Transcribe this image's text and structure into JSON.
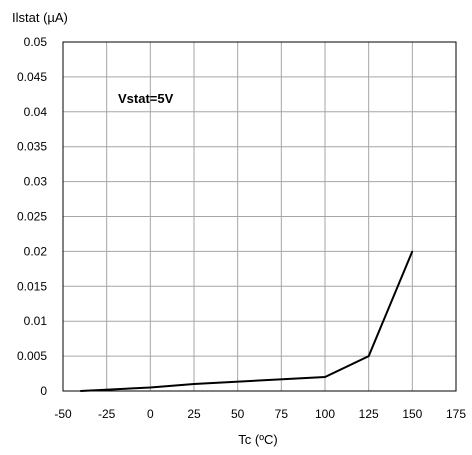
{
  "chart_data": {
    "type": "line",
    "title": "",
    "ylabel": "Ilstat (µA)",
    "xlabel": "Tc (ºC)",
    "annotation": "Vstat=5V",
    "xlim": [
      -50,
      175
    ],
    "ylim": [
      0,
      0.05
    ],
    "x_ticks": [
      -50,
      -25,
      0,
      25,
      50,
      75,
      100,
      125,
      150,
      175
    ],
    "y_ticks": [
      0,
      0.005,
      0.01,
      0.015,
      0.02,
      0.025,
      0.03,
      0.035,
      0.04,
      0.045,
      0.05
    ],
    "x_tick_labels": [
      "-50",
      "-25",
      "0",
      "25",
      "50",
      "75",
      "100",
      "125",
      "150",
      "175"
    ],
    "y_tick_labels": [
      "0",
      "0.005",
      "0.01",
      "0.015",
      "0.02",
      "0.025",
      "0.03",
      "0.035",
      "0.04",
      "0.045",
      "0.05"
    ],
    "grid": true,
    "series": [
      {
        "x": [
          -40,
          0,
          25,
          100,
          125,
          150
        ],
        "y": [
          0,
          0.0005,
          0.001,
          0.002,
          0.005,
          0.02
        ]
      }
    ],
    "colors": {
      "line": "#000000",
      "grid": "#a6a6a6",
      "frame": "#000000"
    }
  }
}
